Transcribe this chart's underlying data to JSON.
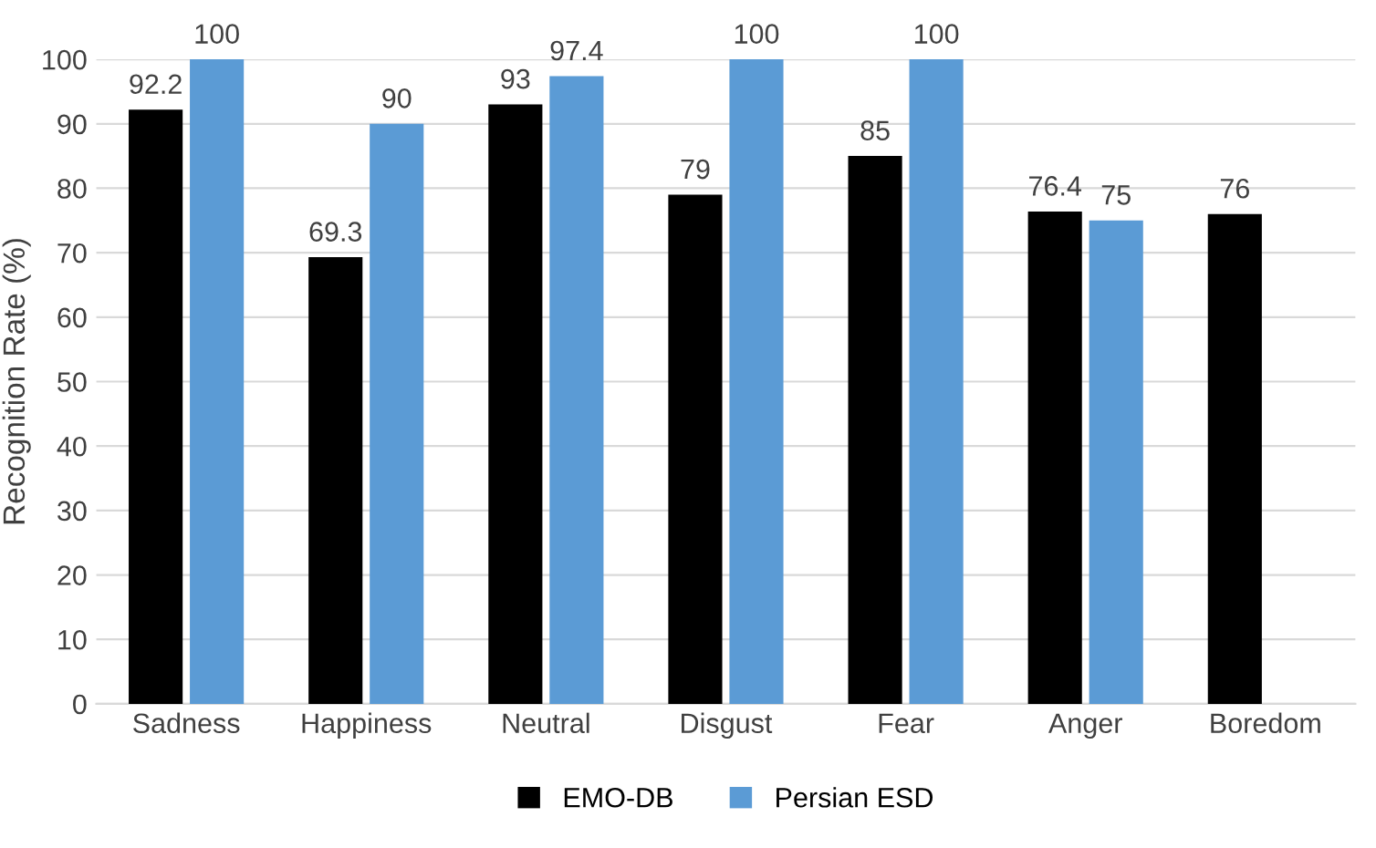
{
  "chart_data": {
    "type": "bar",
    "ylabel": "Recognition Rate (%)",
    "categories": [
      "Sadness",
      "Happiness",
      "Neutral",
      "Disgust",
      "Fear",
      "Anger",
      "Boredom"
    ],
    "series": [
      {
        "name": "EMO-DB",
        "color": "#000000",
        "values": [
          92.2,
          69.3,
          93,
          79,
          85,
          76.4,
          76
        ]
      },
      {
        "name": "Persian ESD",
        "color": "#5b9bd5",
        "values": [
          100,
          90,
          97.4,
          100,
          100,
          75,
          null
        ]
      }
    ],
    "ylim": [
      0,
      100
    ],
    "yticks": [
      0,
      10,
      20,
      30,
      40,
      50,
      60,
      70,
      80,
      90,
      100
    ],
    "grid": "y",
    "legend": "bottom",
    "data_labels": true
  }
}
